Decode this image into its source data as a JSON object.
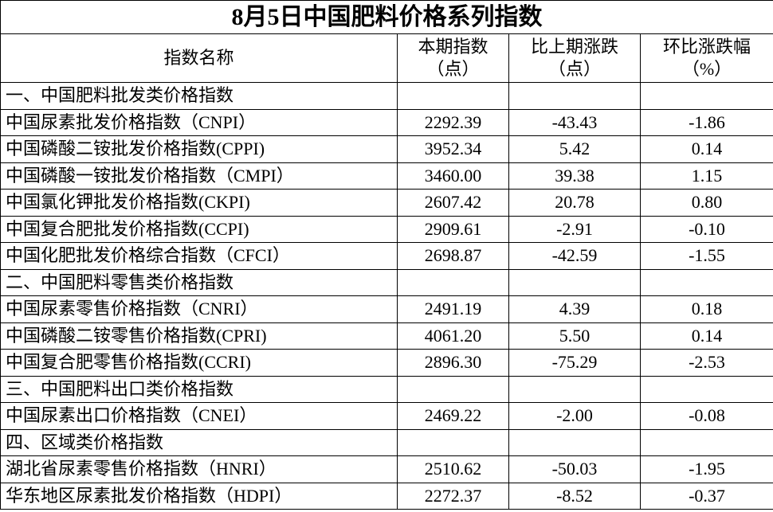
{
  "title": "8月5日中国肥料价格系列指数",
  "header": [
    [
      "指数名称"
    ],
    [
      "本期指数",
      "（点）"
    ],
    [
      "比上期涨跌",
      "（点）"
    ],
    [
      "环比涨跌幅",
      "（%）"
    ]
  ],
  "sections": [
    {
      "title": "一、中国肥料批发类价格指数",
      "rows": [
        [
          "中国尿素批发价格指数（CNPI）",
          "2292.39",
          "-43.43",
          "-1.86"
        ],
        [
          "中国磷酸二铵批发价格指数(CPPI)",
          "3952.34",
          "5.42",
          "0.14"
        ],
        [
          "中国磷酸一铵批发价格指数（CMPI）",
          "3460.00",
          "39.38",
          "1.15"
        ],
        [
          "中国氯化钾批发价格指数(CKPI)",
          "2607.42",
          "20.78",
          "0.80"
        ],
        [
          "中国复合肥批发价格指数(CCPI)",
          "2909.61",
          "-2.91",
          "-0.10"
        ],
        [
          "中国化肥批发价格综合指数（CFCI）",
          "2698.87",
          "-42.59",
          "-1.55"
        ]
      ]
    },
    {
      "title": "二、中国肥料零售类价格指数",
      "rows": [
        [
          "中国尿素零售价格指数（CNRI）",
          "2491.19",
          "4.39",
          "0.18"
        ],
        [
          "中国磷酸二铵零售价格指数(CPRI)",
          "4061.20",
          "5.50",
          "0.14"
        ],
        [
          "中国复合肥零售价格指数(CCRI)",
          "2896.30",
          "-75.29",
          "-2.53"
        ]
      ]
    },
    {
      "title": "三、中国肥料出口类价格指数",
      "rows": [
        [
          "中国尿素出口价格指数（CNEI）",
          "2469.22",
          "-2.00",
          "-0.08"
        ]
      ]
    },
    {
      "title": "四、区域类价格指数",
      "rows": [
        [
          "湖北省尿素零售价格指数（HNRI）",
          "2510.62",
          "-50.03",
          "-1.95"
        ],
        [
          "华东地区尿素批发价格指数（HDPI）",
          "2272.37",
          "-8.52",
          "-0.37"
        ]
      ]
    }
  ]
}
